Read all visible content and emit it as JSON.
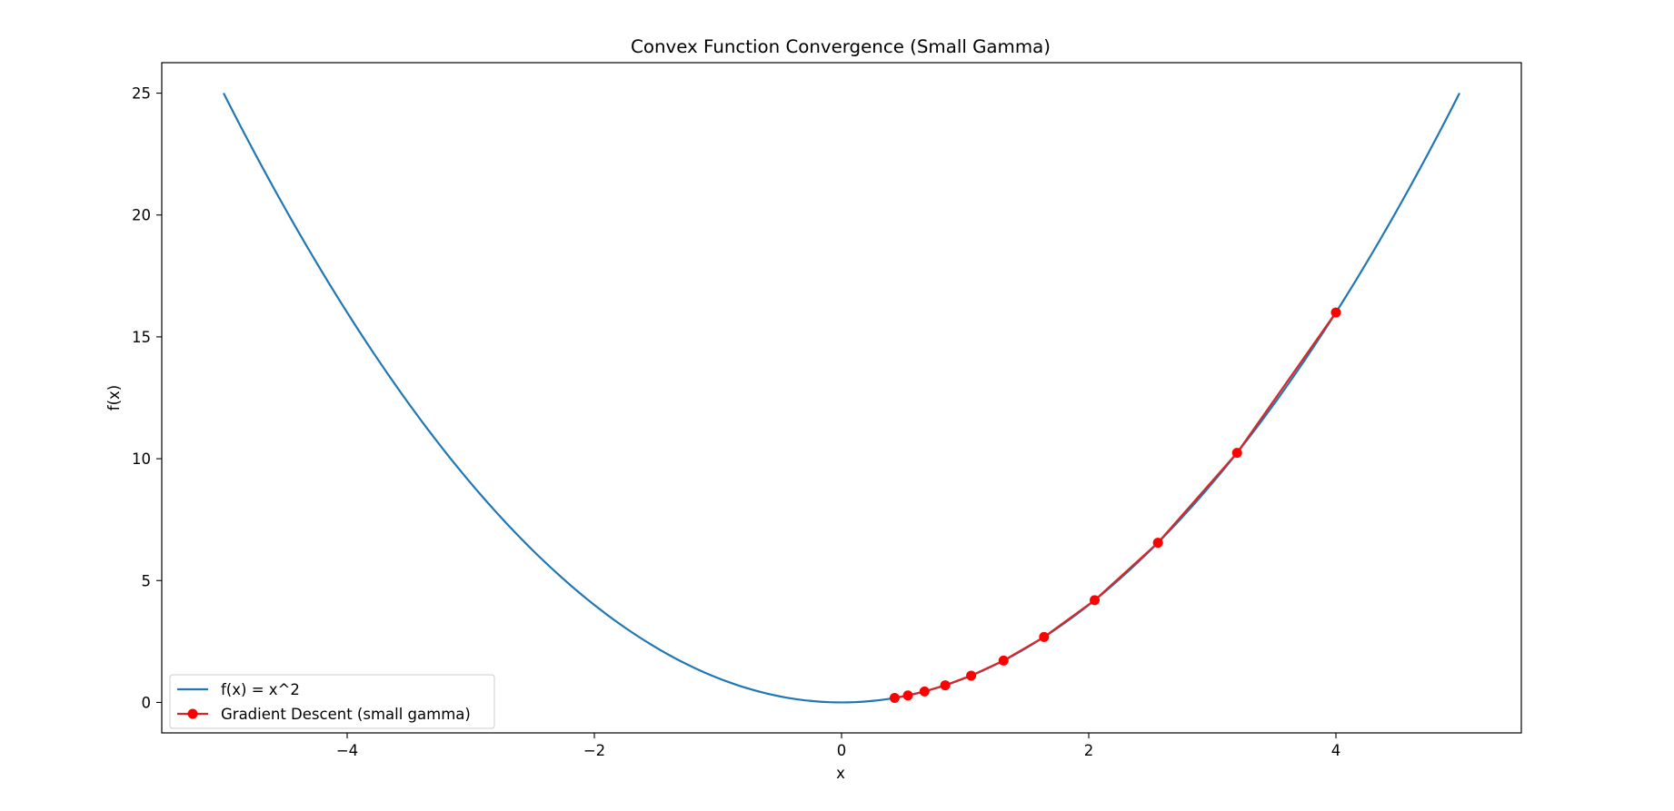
{
  "chart_data": {
    "type": "line",
    "title": "Convex Function Convergence (Small Gamma)",
    "xlabel": "x",
    "ylabel": "f(x)",
    "xlim": [
      -5.5,
      5.5
    ],
    "ylim": [
      -1.25,
      26.25
    ],
    "x_ticks": [
      -4,
      -2,
      0,
      2,
      4
    ],
    "x_tick_labels": [
      "−4",
      "−2",
      "0",
      "2",
      "4"
    ],
    "y_ticks": [
      0,
      5,
      10,
      15,
      20,
      25
    ],
    "y_tick_labels": [
      "0",
      "5",
      "10",
      "15",
      "20",
      "25"
    ],
    "grid": false,
    "legend": {
      "placement": "lower-left",
      "entries": [
        "f(x) = x^2",
        "Gradient Descent (small gamma)"
      ]
    },
    "series": [
      {
        "name": "f(x) = x^2",
        "color": "#1f77b4",
        "function": "x^2",
        "x_range": [
          -5,
          5
        ],
        "marker": "none"
      },
      {
        "name": "Gradient Descent (small gamma)",
        "color": "#ff0000",
        "line_color": "#d62728",
        "marker": "circle",
        "x": [
          4.0,
          3.2,
          2.56,
          2.048,
          1.6384,
          1.31072,
          1.048576,
          0.8388608,
          0.67108864,
          0.536870912,
          0.4294967296
        ],
        "y": [
          16.0,
          10.24,
          6.5536,
          4.194304,
          2.68435456,
          1.717986918,
          1.099511628,
          0.703687442,
          0.450359963,
          0.288230376,
          0.184467441
        ]
      }
    ]
  }
}
